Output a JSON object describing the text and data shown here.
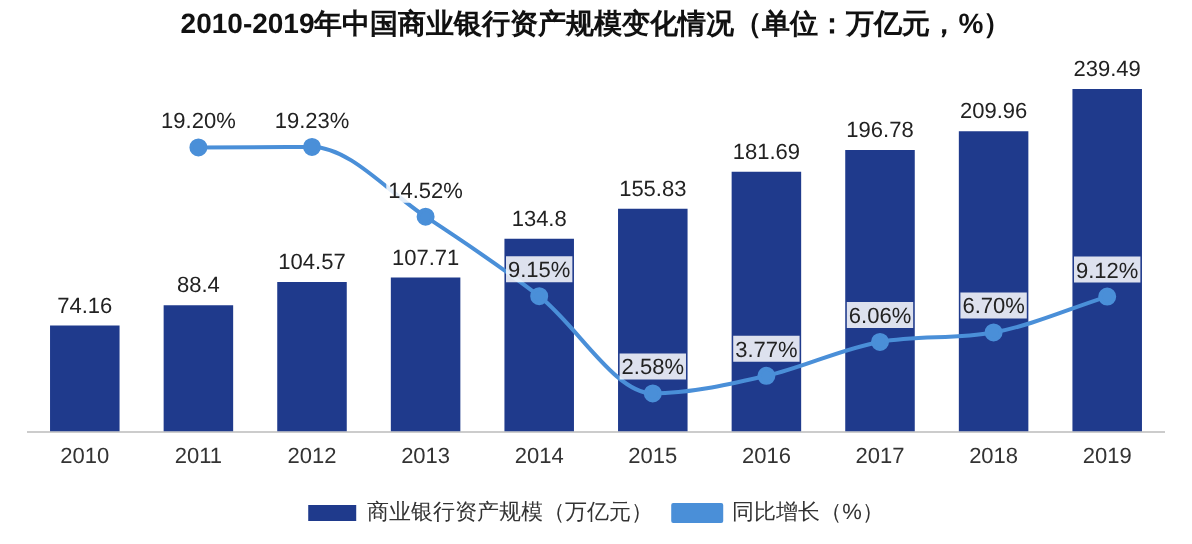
{
  "chart_data": {
    "type": "bar",
    "title": "2010-2019年中国商业银行资产规模变化情况（单位：万亿元，%）",
    "categories": [
      "2010",
      "2011",
      "2012",
      "2013",
      "2014",
      "2015",
      "2016",
      "2017",
      "2018",
      "2019"
    ],
    "legend": "bottom",
    "grid": false,
    "series": [
      {
        "name": "商业银行资产规模（万亿元）",
        "color": "#1f3a8c",
        "values": [
          74.16,
          88.4,
          104.57,
          107.71,
          134.8,
          155.83,
          181.69,
          196.78,
          209.96,
          239.49
        ],
        "value_labels": [
          "74.16",
          "88.4",
          "104.57",
          "107.71",
          "134.8",
          "155.83",
          "181.69",
          "196.78",
          "209.96",
          "239.49"
        ]
      },
      {
        "name": "同比增长（%）",
        "type": "line",
        "axis": "y2",
        "color": "#4a8fd8",
        "marker": "circle",
        "values": [
          null,
          19.2,
          19.23,
          14.52,
          9.15,
          2.58,
          3.77,
          6.06,
          6.7,
          9.12
        ],
        "value_labels": [
          null,
          "19.20%",
          "19.23%",
          "14.52%",
          "9.15%",
          "2.58%",
          "3.77%",
          "6.06%",
          "6.70%",
          "9.12%"
        ]
      }
    ]
  }
}
